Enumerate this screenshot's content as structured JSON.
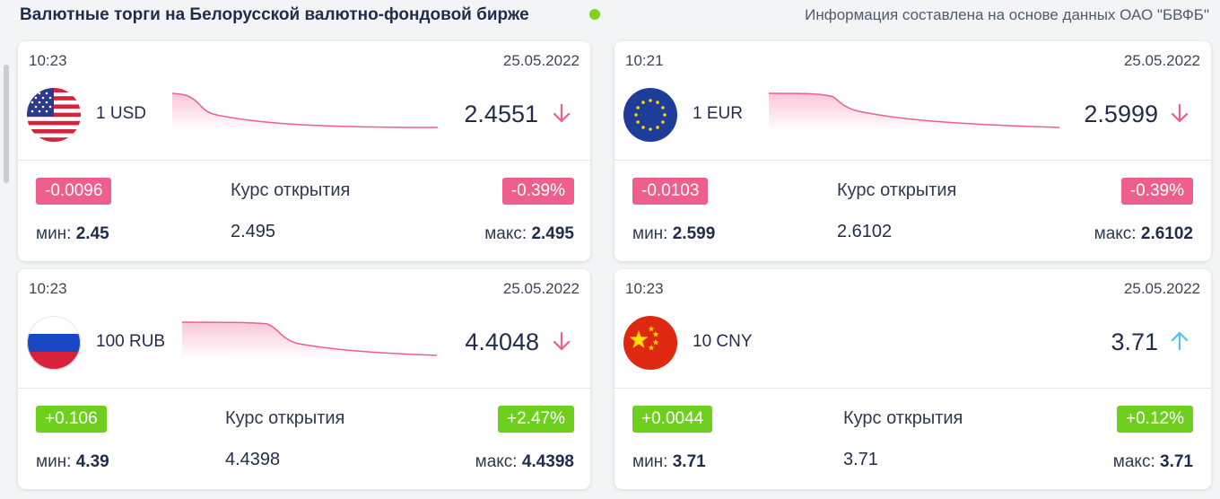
{
  "header": {
    "title": "Валютные торги на Белорусской валютно-фондовой бирже",
    "info": "Информация составлена на основе данных ОАО \"БВФБ\""
  },
  "labels": {
    "open": "Курс открытия",
    "min": "мин:",
    "max": "макс:"
  },
  "colors": {
    "negative": "#ef5f8c",
    "positive": "#6fcf1f",
    "live": "#7ed321",
    "arrow_down": "#ef5f8c",
    "arrow_up": "#4fc3e8"
  },
  "cards": [
    {
      "time": "10:23",
      "date": "25.05.2022",
      "currency": "1 USD",
      "flag": "usa-flag-icon",
      "rate": "2.4551",
      "trend": "down",
      "change": "-0.0096",
      "change_pct": "-0.39%",
      "open": "2.495",
      "min": "2.45",
      "max": "2.495",
      "direction": "negative"
    },
    {
      "time": "10:21",
      "date": "25.05.2022",
      "currency": "1 EUR",
      "flag": "eu-flag-icon",
      "rate": "2.5999",
      "trend": "down",
      "change": "-0.0103",
      "change_pct": "-0.39%",
      "open": "2.6102",
      "min": "2.599",
      "max": "2.6102",
      "direction": "negative"
    },
    {
      "time": "10:23",
      "date": "25.05.2022",
      "currency": "100 RUB",
      "flag": "russia-flag-icon",
      "rate": "4.4048",
      "trend": "down",
      "change": "+0.106",
      "change_pct": "+2.47%",
      "open": "4.4398",
      "min": "4.39",
      "max": "4.4398",
      "direction": "positive"
    },
    {
      "time": "10:23",
      "date": "25.05.2022",
      "currency": "10 CNY",
      "flag": "china-flag-icon",
      "rate": "3.71",
      "trend": "up",
      "change": "+0.0044",
      "change_pct": "+0.12%",
      "open": "3.71",
      "min": "3.71",
      "max": "3.71",
      "direction": "positive"
    }
  ]
}
